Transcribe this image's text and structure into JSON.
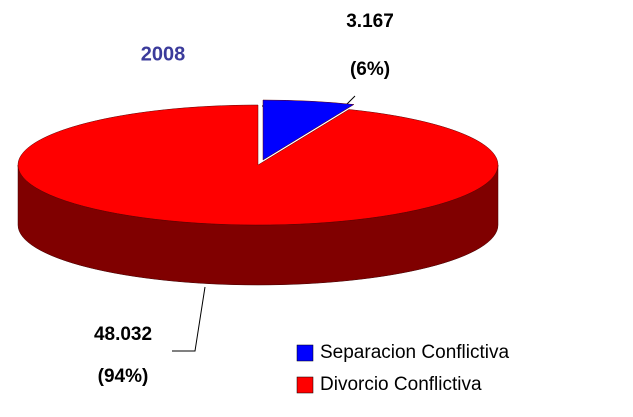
{
  "chart_data": {
    "type": "pie",
    "title": "2008",
    "categories": [
      "Separacion Conflictiva",
      "Divorcio Conflictiva"
    ],
    "values": [
      3167,
      48032
    ],
    "value_labels": [
      "3.167",
      "48.032"
    ],
    "percent_labels": [
      "(6%)",
      "(94%)"
    ],
    "colors": [
      "#0000ff",
      "#ff0000"
    ],
    "side_colors": [
      "#000080",
      "#800000"
    ],
    "legend": "bottom-right"
  }
}
